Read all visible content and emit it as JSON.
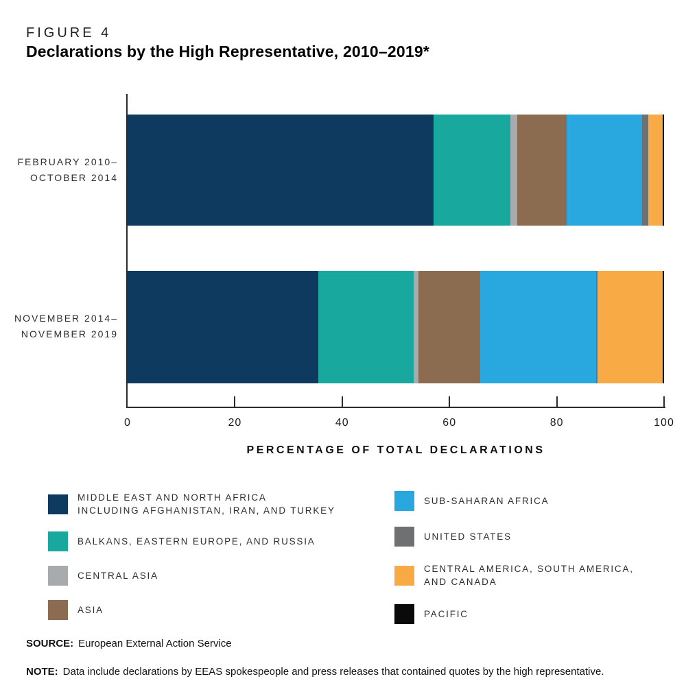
{
  "figure": {
    "label": "FIGURE 4",
    "title": "Declarations by the High Representative, 2010–2019*"
  },
  "chart_data": {
    "type": "bar",
    "orientation": "horizontal",
    "stacked": true,
    "unit": "percent",
    "title": "Declarations by the High Representative, 2010–2019*",
    "xlabel": "PERCENTAGE OF TOTAL DECLARATIONS",
    "ylabel": "",
    "xlim": [
      0,
      100
    ],
    "xticks": [
      0,
      20,
      40,
      60,
      80,
      100
    ],
    "grid": false,
    "legend_position": "bottom",
    "categories": [
      "FEBRUARY 2010–OCTOBER 2014",
      "NOVEMBER 2014–NOVEMBER 2019"
    ],
    "category_label_lines": [
      [
        "FEBRUARY 2010–",
        "OCTOBER 2014"
      ],
      [
        "NOVEMBER 2014–",
        "NOVEMBER 2019"
      ]
    ],
    "series": [
      {
        "name": "MIDDLE EAST AND NORTH AFRICA INCLUDING AFGHANISTAN, IRAN, AND TURKEY",
        "color": "#0d3a5e",
        "values": [
          57.0,
          35.5
        ]
      },
      {
        "name": "BALKANS, EASTERN EUROPE, AND RUSSIA",
        "color": "#18a89e",
        "values": [
          14.3,
          17.8
        ]
      },
      {
        "name": "CENTRAL ASIA",
        "color": "#a8abad",
        "values": [
          1.3,
          0.9
        ]
      },
      {
        "name": "ASIA",
        "color": "#8b6c50",
        "values": [
          9.2,
          11.5
        ]
      },
      {
        "name": "SUB-SAHARAN AFRICA",
        "color": "#29a8e0",
        "values": [
          14.1,
          21.7
        ]
      },
      {
        "name": "UNITED STATES",
        "color": "#6f7072",
        "values": [
          1.2,
          0.2
        ]
      },
      {
        "name": "CENTRAL AMERICA, SOUTH AMERICA, AND CANADA",
        "color": "#f8ab45",
        "values": [
          2.6,
          12.1
        ]
      },
      {
        "name": "PACIFIC",
        "color": "#0a0a0a",
        "values": [
          0.3,
          0.3
        ]
      }
    ]
  },
  "legend": {
    "columns": [
      [
        {
          "series": 0,
          "lines": [
            "MIDDLE EAST AND NORTH AFRICA",
            "INCLUDING AFGHANISTAN, IRAN, AND TURKEY"
          ]
        },
        {
          "series": 1,
          "lines": [
            "BALKANS, EASTERN EUROPE, AND RUSSIA"
          ]
        },
        {
          "series": 2,
          "lines": [
            "CENTRAL ASIA"
          ]
        },
        {
          "series": 3,
          "lines": [
            "ASIA"
          ]
        }
      ],
      [
        {
          "series": 4,
          "lines": [
            "SUB-SAHARAN AFRICA"
          ]
        },
        {
          "series": 5,
          "lines": [
            "UNITED STATES"
          ]
        },
        {
          "series": 6,
          "lines": [
            "CENTRAL AMERICA, SOUTH AMERICA,",
            "AND CANADA"
          ]
        },
        {
          "series": 7,
          "lines": [
            "PACIFIC"
          ]
        }
      ]
    ]
  },
  "source": {
    "label": "SOURCE:",
    "text": "European External Action Service"
  },
  "note": {
    "label": "NOTE:",
    "text": "Data include declarations by EEAS spokespeople and press releases that contained quotes by the high representative."
  }
}
